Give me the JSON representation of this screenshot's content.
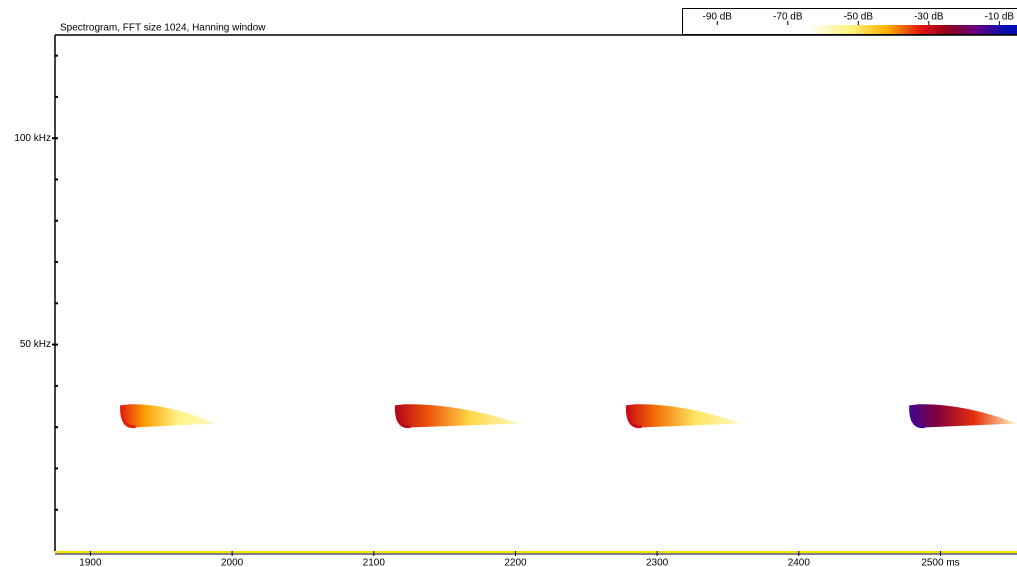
{
  "chart_data": {
    "type": "spectrogram",
    "title": "Spectrogram, FFT size 1024, Hanning window",
    "xlim": [
      1875,
      2554
    ],
    "xticks": [
      1900,
      2000,
      2100,
      2200,
      2300,
      2400,
      {
        "value": 2500,
        "label": "2500 ms"
      }
    ],
    "ylim": [
      0,
      125
    ],
    "yticks": [
      {
        "value": 50,
        "label": "50 kHz"
      },
      {
        "value": 100,
        "label": "100 kHz"
      }
    ],
    "yminorticks": [
      10,
      20,
      30,
      40,
      60,
      70,
      80,
      90,
      110,
      120
    ],
    "clim": [
      -100,
      -5
    ],
    "cticks": [
      {
        "value": -90,
        "label": "-90 dB"
      },
      {
        "value": -70,
        "label": "-70 dB"
      },
      {
        "value": -50,
        "label": "-50 dB"
      },
      {
        "value": -30,
        "label": "-30 dB"
      },
      {
        "value": -10,
        "label": "-10 dB"
      }
    ],
    "colormap": [
      {
        "value": -65,
        "color": "#ffffff"
      },
      {
        "value": -52,
        "color": "#fff27a"
      },
      {
        "value": -42,
        "color": "#ffb000"
      },
      {
        "value": -32,
        "color": "#e01010"
      },
      {
        "value": -24,
        "color": "#8a0020"
      },
      {
        "value": -17,
        "color": "#6a0080"
      },
      {
        "value": -8,
        "color": "#0010b0"
      }
    ],
    "calls": [
      {
        "start": 1922,
        "end": 1988,
        "f_start": 35.3,
        "f_end": 30.4,
        "level": -33
      },
      {
        "start": 2116,
        "end": 2203,
        "f_start": 35.3,
        "f_end": 30.4,
        "level": -28
      },
      {
        "start": 2279,
        "end": 2359,
        "f_start": 35.3,
        "f_end": 30.4,
        "level": -30
      },
      {
        "start": 2479,
        "end": 2554,
        "f_start": 35.3,
        "f_end": 30.4,
        "level": -14
      }
    ]
  }
}
